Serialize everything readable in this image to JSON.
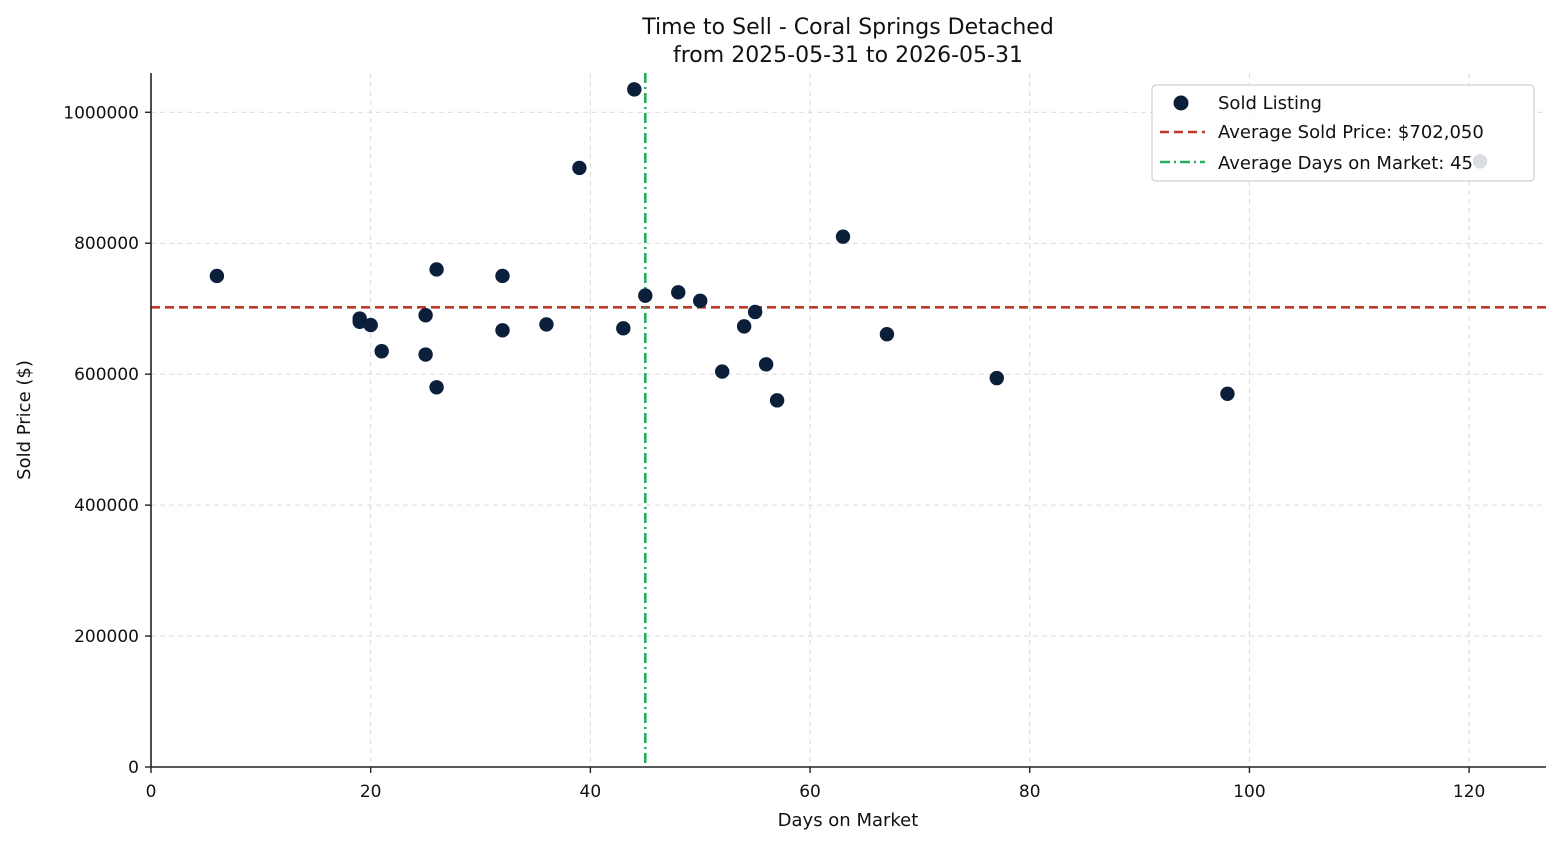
{
  "chart_data": {
    "type": "scatter",
    "title": "Time to Sell - Coral Springs Detached",
    "subtitle": "from 2025-05-31 to 2026-05-31",
    "xlabel": "Days on Market",
    "ylabel": "Sold Price ($)",
    "xlim": [
      0,
      127
    ],
    "ylim": [
      0,
      1060000
    ],
    "x_ticks": [
      0,
      20,
      40,
      60,
      80,
      100,
      120
    ],
    "y_ticks": [
      0,
      200000,
      400000,
      600000,
      800000,
      1000000
    ],
    "grid": true,
    "legend_position": "top-right",
    "series": [
      {
        "name": "Sold Listing",
        "color": "#0b1f3a",
        "points": [
          {
            "x": 6,
            "y": 750000
          },
          {
            "x": 19,
            "y": 685000
          },
          {
            "x": 19,
            "y": 680000
          },
          {
            "x": 20,
            "y": 675000
          },
          {
            "x": 21,
            "y": 635000
          },
          {
            "x": 25,
            "y": 690000
          },
          {
            "x": 25,
            "y": 630000
          },
          {
            "x": 26,
            "y": 760000
          },
          {
            "x": 26,
            "y": 580000
          },
          {
            "x": 32,
            "y": 750000
          },
          {
            "x": 32,
            "y": 667000
          },
          {
            "x": 36,
            "y": 676000
          },
          {
            "x": 39,
            "y": 915000
          },
          {
            "x": 43,
            "y": 670000
          },
          {
            "x": 44,
            "y": 1035000
          },
          {
            "x": 45,
            "y": 720000
          },
          {
            "x": 48,
            "y": 725000
          },
          {
            "x": 50,
            "y": 712000
          },
          {
            "x": 52,
            "y": 604000
          },
          {
            "x": 54,
            "y": 673000
          },
          {
            "x": 55,
            "y": 695000
          },
          {
            "x": 56,
            "y": 615000
          },
          {
            "x": 57,
            "y": 560000
          },
          {
            "x": 63,
            "y": 810000
          },
          {
            "x": 67,
            "y": 661000
          },
          {
            "x": 77,
            "y": 594000
          },
          {
            "x": 98,
            "y": 570000
          },
          {
            "x": 121,
            "y": 925000
          }
        ]
      }
    ],
    "reference_lines": {
      "average_price": {
        "label": "Average Sold Price: $702,050",
        "value": 702050,
        "color": "#c0392b",
        "style": "dashed"
      },
      "average_days": {
        "label": "Average Days on Market: 45",
        "value": 45,
        "color": "#27ae60",
        "style": "dash-dot"
      }
    }
  }
}
